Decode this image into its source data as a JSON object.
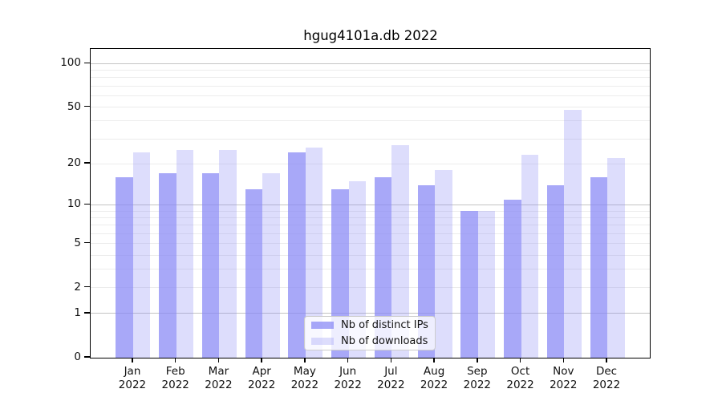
{
  "title": "hgug4101a.db 2022",
  "chart_data": {
    "type": "bar",
    "title": "hgug4101a.db 2022",
    "x_categories": [
      "Jan",
      "Feb",
      "Mar",
      "Apr",
      "May",
      "Jun",
      "Jul",
      "Aug",
      "Sep",
      "Oct",
      "Nov",
      "Dec"
    ],
    "x_sublabel": "2022",
    "series": [
      {
        "name": "Nb of distinct IPs",
        "values": [
          16,
          17,
          17,
          13,
          24,
          13,
          16,
          14,
          9,
          11,
          14,
          16
        ],
        "opacity": 0.72
      },
      {
        "name": "Nb of downloads",
        "values": [
          24,
          25,
          25,
          17,
          26,
          15,
          27,
          18,
          9,
          23,
          48,
          22
        ],
        "opacity": 0.28
      }
    ],
    "bar_color": "#8686f5",
    "y_scale": "log10(1+x)",
    "y_ticks": [
      0,
      1,
      2,
      5,
      10,
      20,
      50,
      100
    ],
    "y_minor_gridlines": [
      3,
      4,
      6,
      7,
      8,
      9,
      30,
      40,
      60,
      70,
      80,
      90
    ],
    "y_major_dark_gridlines": [
      1,
      10,
      100
    ],
    "y_top_value": 126,
    "grid": true,
    "legend_position": "lower-center",
    "colors": {
      "grid_minor": "#ececec",
      "grid_major": "#c4c4c4",
      "axis": "#000000",
      "text": "#111111",
      "background": "#ffffff",
      "legend_border": "#cccccc"
    }
  }
}
